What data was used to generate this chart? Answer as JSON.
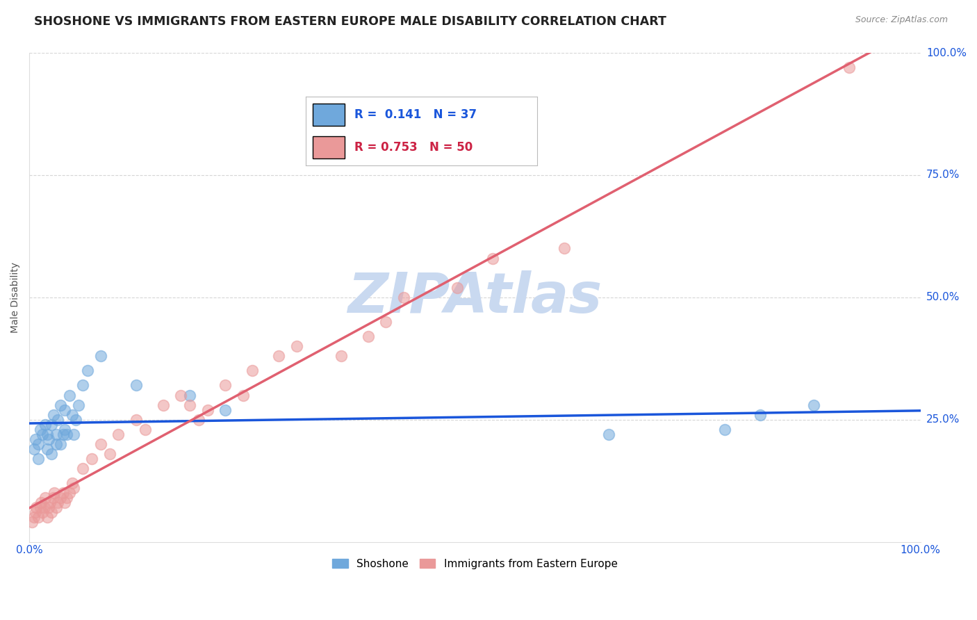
{
  "title": "SHOSHONE VS IMMIGRANTS FROM EASTERN EUROPE MALE DISABILITY CORRELATION CHART",
  "source": "Source: ZipAtlas.com",
  "ylabel": "Male Disability",
  "xlim": [
    0.0,
    1.0
  ],
  "ylim": [
    0.0,
    1.0
  ],
  "ytick_labels": [
    "25.0%",
    "50.0%",
    "75.0%",
    "100.0%"
  ],
  "ytick_vals": [
    0.25,
    0.5,
    0.75,
    1.0
  ],
  "xtick_positions": [
    0.0,
    0.25,
    0.5,
    0.75,
    1.0
  ],
  "shoshone_color": "#6fa8dc",
  "eastern_europe_color": "#ea9999",
  "shoshone_line_color": "#1a56db",
  "eastern_europe_line_color": "#e06070",
  "shoshone_R": 0.141,
  "shoshone_N": 37,
  "eastern_europe_R": 0.753,
  "eastern_europe_N": 50,
  "watermark": "ZIPAtlas",
  "watermark_color": "#c9d9f0",
  "background_color": "#ffffff",
  "grid_color": "#cccccc",
  "title_fontsize": 12.5,
  "axis_label_fontsize": 10,
  "tick_label_fontsize": 11,
  "shoshone_x": [
    0.005,
    0.007,
    0.01,
    0.01,
    0.012,
    0.015,
    0.018,
    0.02,
    0.02,
    0.022,
    0.025,
    0.025,
    0.027,
    0.03,
    0.03,
    0.032,
    0.035,
    0.035,
    0.038,
    0.04,
    0.04,
    0.042,
    0.045,
    0.048,
    0.05,
    0.052,
    0.055,
    0.06,
    0.065,
    0.08,
    0.12,
    0.18,
    0.22,
    0.65,
    0.78,
    0.82,
    0.88
  ],
  "shoshone_y": [
    0.19,
    0.21,
    0.17,
    0.2,
    0.23,
    0.22,
    0.24,
    0.19,
    0.22,
    0.21,
    0.18,
    0.24,
    0.26,
    0.2,
    0.22,
    0.25,
    0.2,
    0.28,
    0.22,
    0.23,
    0.27,
    0.22,
    0.3,
    0.26,
    0.22,
    0.25,
    0.28,
    0.32,
    0.35,
    0.38,
    0.32,
    0.3,
    0.27,
    0.22,
    0.23,
    0.26,
    0.28
  ],
  "eastern_europe_x": [
    0.003,
    0.005,
    0.007,
    0.008,
    0.01,
    0.012,
    0.013,
    0.015,
    0.017,
    0.018,
    0.02,
    0.022,
    0.023,
    0.025,
    0.027,
    0.028,
    0.03,
    0.032,
    0.035,
    0.038,
    0.04,
    0.042,
    0.045,
    0.048,
    0.05,
    0.06,
    0.07,
    0.08,
    0.09,
    0.1,
    0.12,
    0.13,
    0.15,
    0.17,
    0.18,
    0.19,
    0.2,
    0.22,
    0.24,
    0.25,
    0.28,
    0.3,
    0.35,
    0.38,
    0.4,
    0.42,
    0.48,
    0.52,
    0.6,
    0.92
  ],
  "eastern_europe_y": [
    0.04,
    0.05,
    0.06,
    0.07,
    0.05,
    0.07,
    0.08,
    0.06,
    0.07,
    0.09,
    0.05,
    0.07,
    0.08,
    0.06,
    0.09,
    0.1,
    0.07,
    0.08,
    0.09,
    0.1,
    0.08,
    0.09,
    0.1,
    0.12,
    0.11,
    0.15,
    0.17,
    0.2,
    0.18,
    0.22,
    0.25,
    0.23,
    0.28,
    0.3,
    0.28,
    0.25,
    0.27,
    0.32,
    0.3,
    0.35,
    0.38,
    0.4,
    0.38,
    0.42,
    0.45,
    0.5,
    0.52,
    0.58,
    0.6,
    0.97
  ]
}
